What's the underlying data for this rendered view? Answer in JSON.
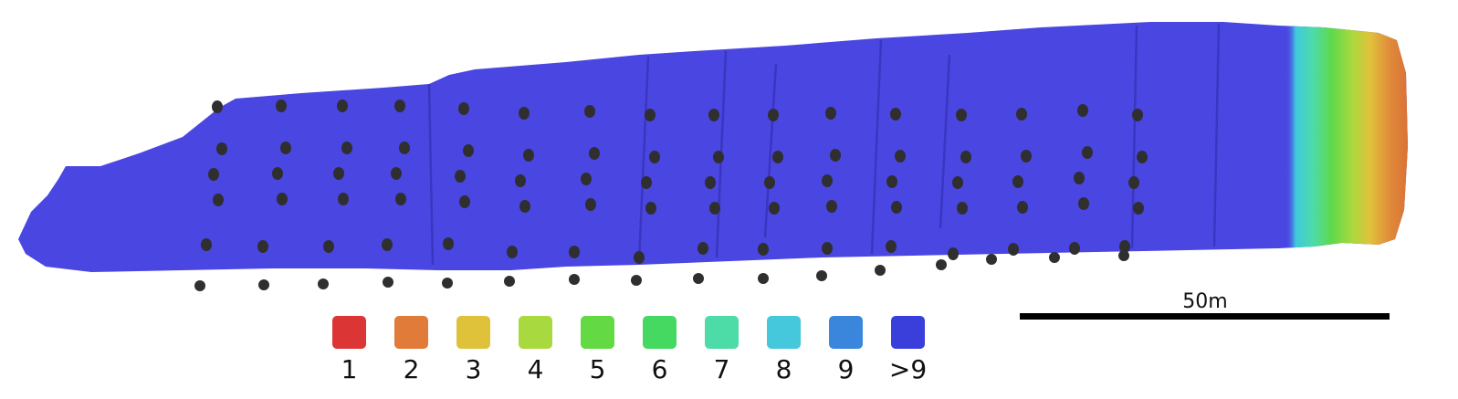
{
  "legend": {
    "items": [
      {
        "label": "1",
        "color": "#dc3535"
      },
      {
        "label": "2",
        "color": "#e07b3a"
      },
      {
        "label": "3",
        "color": "#e0c23a"
      },
      {
        "label": "4",
        "color": "#a8d93e"
      },
      {
        "label": "5",
        "color": "#63d943"
      },
      {
        "label": "6",
        "color": "#45d962"
      },
      {
        "label": "7",
        "color": "#4ddba8"
      },
      {
        "label": "8",
        "color": "#45c8dc"
      },
      {
        "label": "9",
        "color": "#3a86dc"
      },
      {
        "label": ">9",
        "color": "#3a3fdc"
      }
    ]
  },
  "scale_bar": {
    "label": "50m"
  },
  "colors": {
    "surface": "#4a46e2",
    "surface_dark": "#3a36c6",
    "drill_hole": "#2f2f2f"
  }
}
